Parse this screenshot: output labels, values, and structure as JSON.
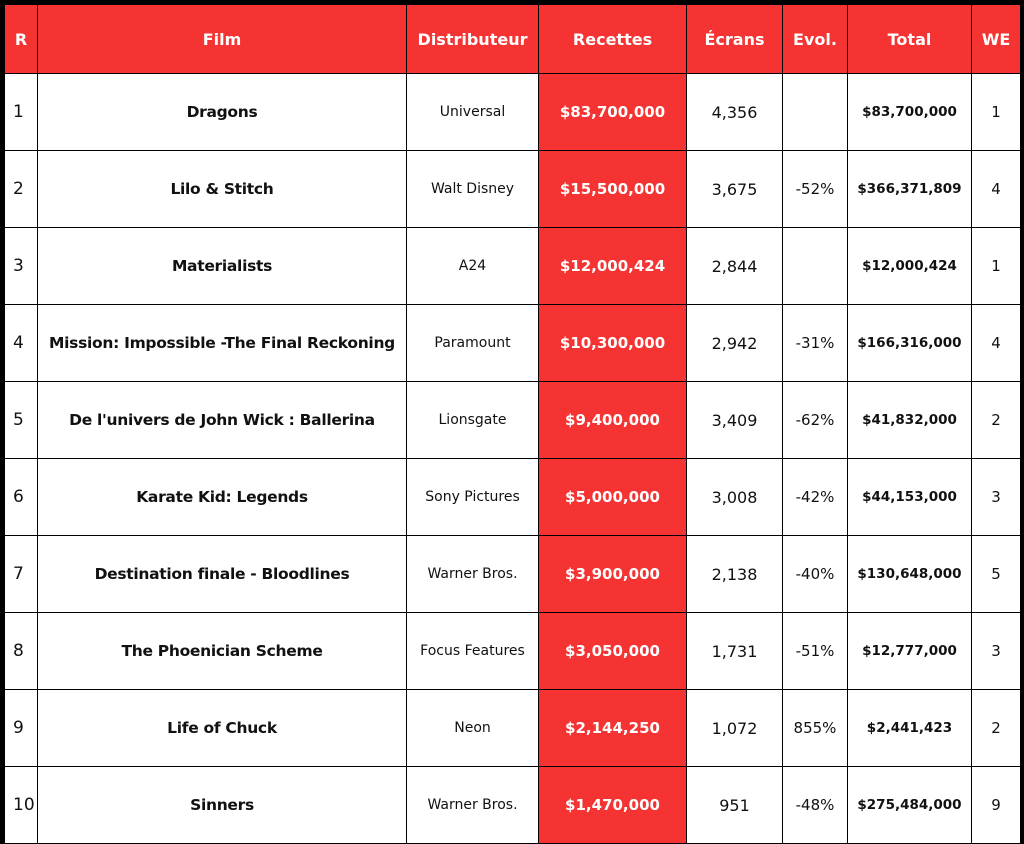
{
  "table": {
    "headers": [
      "R",
      "Film",
      "Distributeur",
      "Recettes",
      "Écrans",
      "Evol.",
      "Total",
      "WE"
    ],
    "rows": [
      [
        "1",
        "Dragons",
        "Universal",
        "$83,700,000",
        "4,356",
        null,
        "$83,700,000",
        "1"
      ],
      [
        "2",
        "Lilo & Stitch",
        "Walt Disney",
        "$15,500,000",
        "3,675",
        "-52%",
        "$366,371,809",
        "4"
      ],
      [
        "3",
        "Materialists",
        "A24",
        "$12,000,424",
        "2,844",
        null,
        "$12,000,424",
        "1"
      ],
      [
        "4",
        "Mission: Impossible -The Final Reckoning",
        "Paramount",
        "$10,300,000",
        "2,942",
        "-31%",
        "$166,316,000",
        "4"
      ],
      [
        "5",
        "De l'univers de John Wick : Ballerina",
        "Lionsgate",
        "$9,400,000",
        "3,409",
        "-62%",
        "$41,832,000",
        "2"
      ],
      [
        "6",
        "Karate Kid: Legends",
        "Sony Pictures",
        "$5,000,000",
        "3,008",
        "-42%",
        "$44,153,000",
        "3"
      ],
      [
        "7",
        "Destination finale - Bloodlines",
        "Warner Bros.",
        "$3,900,000",
        "2,138",
        "-40%",
        "$130,648,000",
        "5"
      ],
      [
        "8",
        "The Phoenician Scheme",
        "Focus Features",
        "$3,050,000",
        "1,731",
        "-51%",
        "$12,777,000",
        "3"
      ],
      [
        "9",
        "Life of Chuck",
        "Neon",
        "$2,144,250",
        "1,072",
        "855%",
        "$2,441,423",
        "2"
      ],
      [
        "10",
        "Sinners",
        "Warner Bros.",
        "$1,470,000",
        "951",
        "-48%",
        "$275,484,000",
        "9"
      ]
    ]
  }
}
